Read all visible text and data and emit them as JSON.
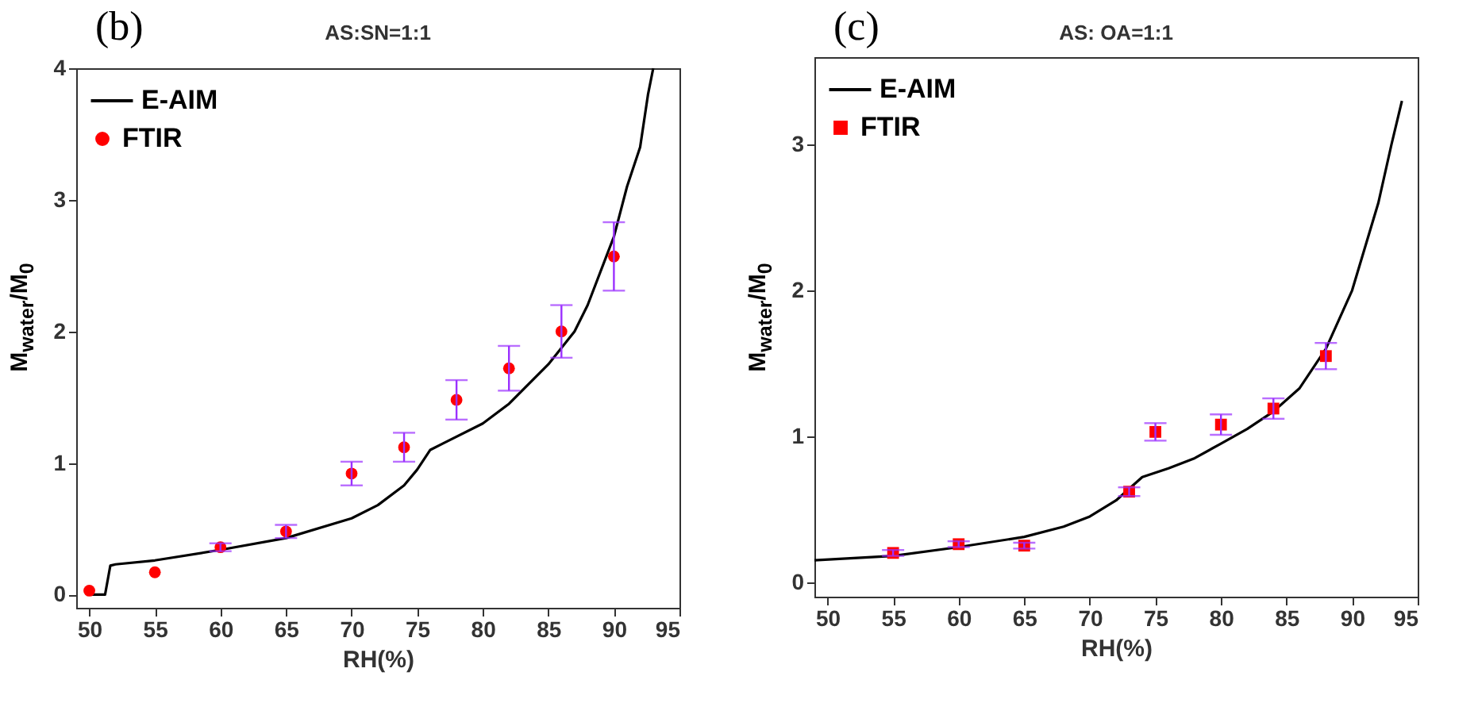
{
  "chart_data": [
    {
      "type": "scatter",
      "title": "AS:SN=1:1",
      "annotations": [
        "(b)"
      ],
      "xlabel": "RH(%)",
      "ylabel": "M$_{water}$/M$_{0}$",
      "xlim": [
        49,
        95
      ],
      "ylim": [
        -0.1,
        4
      ],
      "xticks": [
        50,
        55,
        60,
        65,
        70,
        75,
        80,
        85,
        90,
        95
      ],
      "yticks": [
        0,
        1,
        2,
        3,
        4
      ],
      "grid": false,
      "legend": "top left",
      "series": [
        {
          "name": "E-AIM",
          "type": "line",
          "color": "#000000",
          "x": [
            50.2,
            51.2,
            51.6,
            52,
            55,
            60,
            65,
            70,
            72,
            74,
            75,
            76,
            77,
            80,
            82,
            85,
            87,
            88,
            90,
            91,
            92,
            92.6,
            93
          ],
          "values": [
            0,
            0,
            0.22,
            0.23,
            0.26,
            0.34,
            0.43,
            0.58,
            0.68,
            0.83,
            0.95,
            1.1,
            1.15,
            1.3,
            1.45,
            1.75,
            2.0,
            2.2,
            2.72,
            3.1,
            3.4,
            3.8,
            4.0
          ]
        },
        {
          "name": "FTIR",
          "marker": "circle",
          "color": "#ff0000",
          "x": [
            50,
            55,
            60,
            65,
            70,
            74,
            78,
            82,
            86,
            90
          ],
          "values": [
            0.03,
            0.17,
            0.36,
            0.48,
            0.92,
            1.12,
            1.48,
            1.72,
            2.0,
            2.57
          ],
          "errors": [
            null,
            null,
            0.03,
            0.05,
            0.09,
            0.11,
            0.15,
            0.17,
            0.2,
            [
              2.31,
              2.83
            ]
          ]
        }
      ]
    },
    {
      "type": "scatter",
      "title": "AS:  OA=1:1",
      "annotations": [
        "(c)"
      ],
      "xlabel": "RH(%)",
      "ylabel": "M$_{water}$/M$_{0}$",
      "xlim": [
        49,
        95
      ],
      "ylim": [
        -0.1,
        3.6
      ],
      "xticks": [
        50,
        55,
        60,
        65,
        70,
        75,
        80,
        85,
        90,
        95
      ],
      "yticks": [
        0,
        1,
        2,
        3
      ],
      "grid": false,
      "legend": "top left",
      "series": [
        {
          "name": "E-AIM",
          "type": "line",
          "color": "#000000",
          "x": [
            49,
            55,
            60,
            65,
            68,
            70,
            72,
            73,
            74,
            76,
            78,
            80,
            82,
            84,
            86,
            88,
            90,
            92,
            93,
            93.8
          ],
          "values": [
            0.15,
            0.18,
            0.24,
            0.31,
            0.38,
            0.45,
            0.56,
            0.64,
            0.72,
            0.78,
            0.85,
            0.95,
            1.05,
            1.17,
            1.33,
            1.6,
            2.0,
            2.6,
            3.0,
            3.3
          ]
        },
        {
          "name": "FTIR",
          "marker": "square",
          "color": "#ff0000",
          "x": [
            55,
            60,
            65,
            73,
            75,
            80,
            84,
            88
          ],
          "values": [
            0.2,
            0.26,
            0.25,
            0.62,
            1.03,
            1.08,
            1.19,
            1.55
          ],
          "errors": [
            0.02,
            0.02,
            0.02,
            0.03,
            0.06,
            0.07,
            0.07,
            0.09
          ]
        }
      ]
    }
  ]
}
